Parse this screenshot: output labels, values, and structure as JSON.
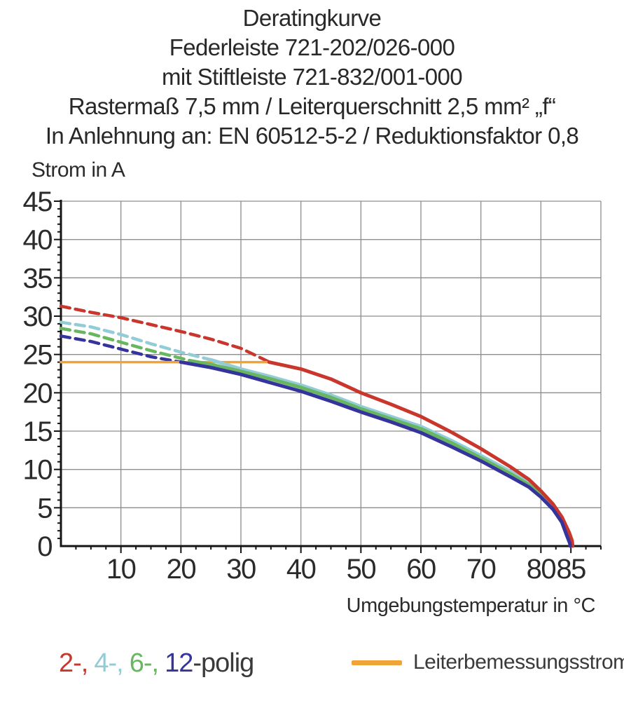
{
  "header": {
    "lines": [
      "Deratingkurve",
      "Federleiste 721-202/026-000",
      "mit Stiftleiste 721-832/001-000",
      "Rastermaß 7,5 mm / Leiterquerschnitt 2,5 mm² „f“",
      "In Anlehnung an: EN 60512-5-2 / Reduktionsfaktor 0,8"
    ]
  },
  "chart_data": {
    "type": "line",
    "title": "Deratingkurve Federleiste 721-202/026-000 mit Stiftleiste 721-832/001-000",
    "xlabel": "Umgebungstemperatur in °C",
    "ylabel": "Strom in A",
    "xlim": [
      0,
      90
    ],
    "ylim": [
      0,
      45
    ],
    "grid": true,
    "x_gridlines": [
      10,
      20,
      30,
      40,
      50,
      60,
      70,
      80,
      90
    ],
    "y_gridlines": [
      5,
      10,
      15,
      20,
      25,
      30,
      35,
      40,
      45
    ],
    "x_tick_labels": [
      10,
      20,
      30,
      40,
      50,
      60,
      70,
      80,
      85
    ],
    "y_tick_labels": [
      0,
      5,
      10,
      15,
      20,
      25,
      30,
      35,
      40,
      45
    ],
    "x_minor_step": 2.5,
    "y_minor_step": 1,
    "colors": {
      "poles_2": "#c9362c",
      "poles_4": "#92ccd6",
      "poles_6": "#68b65f",
      "poles_12": "#34349c",
      "rated": "#f0a437",
      "grid": "#8d8d8d",
      "axis": "#151515",
      "text": "#2b2b2b"
    },
    "series": [
      {
        "name": "2-polig (gestrichelt)",
        "color": "#c9362c",
        "dash": "13 8",
        "width": 4.5,
        "points": [
          [
            0,
            31.3
          ],
          [
            5,
            30.5
          ],
          [
            10,
            29.8
          ],
          [
            15,
            28.9
          ],
          [
            20,
            28.0
          ],
          [
            25,
            27.0
          ],
          [
            30,
            25.8
          ],
          [
            34.5,
            24.1
          ]
        ]
      },
      {
        "name": "4-polig (gestrichelt)",
        "color": "#92ccd6",
        "dash": "13 8",
        "width": 4.5,
        "points": [
          [
            0,
            29.2
          ],
          [
            5,
            28.6
          ],
          [
            10,
            27.6
          ],
          [
            15,
            26.4
          ],
          [
            20,
            25.3
          ],
          [
            25,
            24.3
          ]
        ]
      },
      {
        "name": "6-polig (gestrichelt)",
        "color": "#68b65f",
        "dash": "13 8",
        "width": 4.5,
        "points": [
          [
            0,
            28.4
          ],
          [
            5,
            27.7
          ],
          [
            10,
            26.6
          ],
          [
            15,
            25.5
          ],
          [
            20,
            24.5
          ],
          [
            21.5,
            24.2
          ]
        ]
      },
      {
        "name": "12-polig (gestrichelt)",
        "color": "#34349c",
        "dash": "13 8",
        "width": 4.5,
        "points": [
          [
            0,
            27.4
          ],
          [
            5,
            26.7
          ],
          [
            10,
            25.7
          ],
          [
            15,
            24.7
          ],
          [
            20,
            24.0
          ]
        ]
      },
      {
        "name": "Leiterbemessungsstrom",
        "color": "#f0a437",
        "dash": null,
        "width": 3.5,
        "points": [
          [
            0,
            24
          ],
          [
            34.7,
            24
          ]
        ]
      },
      {
        "name": "4-polig",
        "color": "#92ccd6",
        "dash": null,
        "width": 5,
        "points": [
          [
            25,
            24.3
          ],
          [
            30,
            23.1
          ],
          [
            35,
            22.1
          ],
          [
            40,
            21.0
          ],
          [
            45,
            19.7
          ],
          [
            50,
            18.2
          ],
          [
            55,
            16.9
          ],
          [
            60,
            15.6
          ],
          [
            65,
            13.8
          ],
          [
            70,
            11.8
          ],
          [
            75,
            9.7
          ],
          [
            78,
            8.2
          ],
          [
            80,
            6.9
          ],
          [
            82,
            5.2
          ],
          [
            83.5,
            3.5
          ],
          [
            84.5,
            1.6
          ],
          [
            85,
            0.6
          ],
          [
            85.1,
            0
          ]
        ]
      },
      {
        "name": "6-polig",
        "color": "#68b65f",
        "dash": null,
        "width": 5,
        "points": [
          [
            21.5,
            24.2
          ],
          [
            25,
            23.7
          ],
          [
            30,
            22.8
          ],
          [
            35,
            21.8
          ],
          [
            40,
            20.7
          ],
          [
            45,
            19.4
          ],
          [
            50,
            17.9
          ],
          [
            55,
            16.6
          ],
          [
            60,
            15.3
          ],
          [
            65,
            13.5
          ],
          [
            70,
            11.5
          ],
          [
            75,
            9.4
          ],
          [
            78,
            8.0
          ],
          [
            80,
            6.7
          ],
          [
            82,
            5.0
          ],
          [
            83.5,
            3.3
          ],
          [
            84.4,
            1.5
          ],
          [
            84.9,
            0.5
          ],
          [
            85,
            0
          ]
        ]
      },
      {
        "name": "2-polig",
        "color": "#c9362c",
        "dash": null,
        "width": 5,
        "points": [
          [
            34.7,
            24.0
          ],
          [
            40,
            23.1
          ],
          [
            45,
            21.8
          ],
          [
            50,
            20.0
          ],
          [
            55,
            18.5
          ],
          [
            60,
            16.9
          ],
          [
            65,
            14.9
          ],
          [
            70,
            12.7
          ],
          [
            75,
            10.3
          ],
          [
            78,
            8.7
          ],
          [
            80,
            7.2
          ],
          [
            82,
            5.5
          ],
          [
            83.5,
            3.8
          ],
          [
            84.7,
            1.8
          ],
          [
            85.2,
            0.7
          ],
          [
            85.3,
            0
          ]
        ]
      },
      {
        "name": "12-polig",
        "color": "#34349c",
        "dash": null,
        "width": 5,
        "points": [
          [
            20,
            24.0
          ],
          [
            25,
            23.3
          ],
          [
            30,
            22.4
          ],
          [
            35,
            21.3
          ],
          [
            40,
            20.2
          ],
          [
            45,
            18.9
          ],
          [
            50,
            17.5
          ],
          [
            55,
            16.2
          ],
          [
            60,
            14.8
          ],
          [
            65,
            13.0
          ],
          [
            70,
            11.1
          ],
          [
            75,
            9.0
          ],
          [
            78,
            7.7
          ],
          [
            80,
            6.4
          ],
          [
            82,
            4.8
          ],
          [
            83.5,
            3.1
          ],
          [
            84.3,
            1.4
          ],
          [
            84.8,
            0.4
          ],
          [
            84.9,
            0
          ]
        ]
      }
    ],
    "legend_position": "bottom"
  },
  "legend": {
    "poles": [
      {
        "text": "2-,",
        "color": "#c9362c"
      },
      {
        "text": "4-,",
        "color": "#92ccd6"
      },
      {
        "text": "6-,",
        "color": "#68b65f"
      },
      {
        "text": "12",
        "color": "#34349c"
      }
    ],
    "poles_suffix": "-polig",
    "rated_label": "Leiterbemessungsstrom",
    "rated_color": "#f0a437"
  }
}
